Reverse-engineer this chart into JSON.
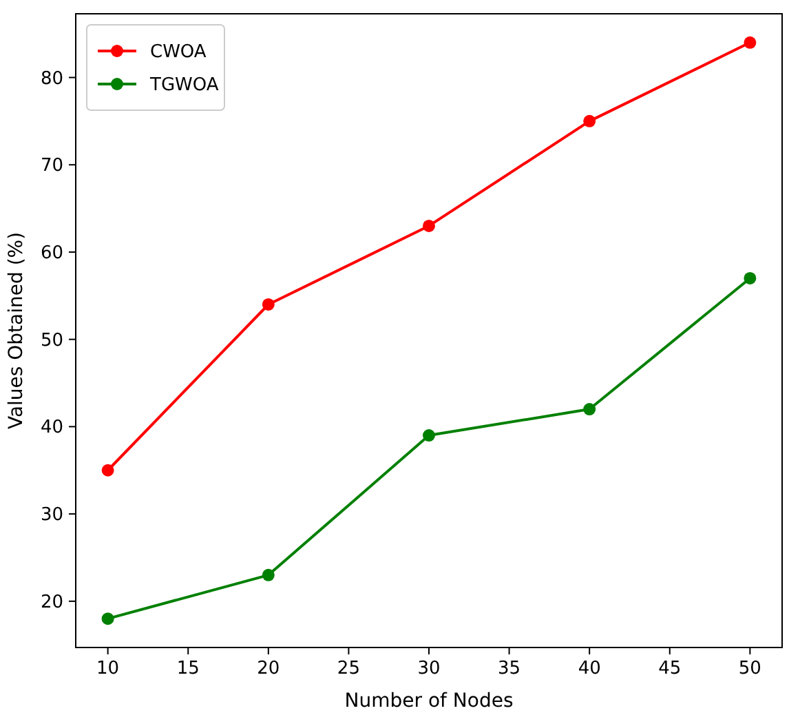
{
  "chart_data": {
    "type": "line",
    "xlabel": "Number of Nodes",
    "ylabel": "Values Obtained (%)",
    "x": [
      10,
      20,
      30,
      40,
      50
    ],
    "series": [
      {
        "name": "CWOA",
        "color": "#ff0000",
        "values": [
          35,
          54,
          63,
          75,
          84
        ]
      },
      {
        "name": "TGWOA",
        "color": "#008000",
        "values": [
          18,
          23,
          39,
          42,
          57
        ]
      }
    ],
    "xlim": [
      8,
      52
    ],
    "xticks": [
      10,
      15,
      20,
      25,
      30,
      35,
      40,
      45,
      50
    ],
    "ylim": [
      14.7,
      87.3
    ],
    "yticks": [
      20,
      30,
      40,
      50,
      60,
      70,
      80
    ],
    "legend": "top left",
    "marker": "circle",
    "grid": false
  }
}
